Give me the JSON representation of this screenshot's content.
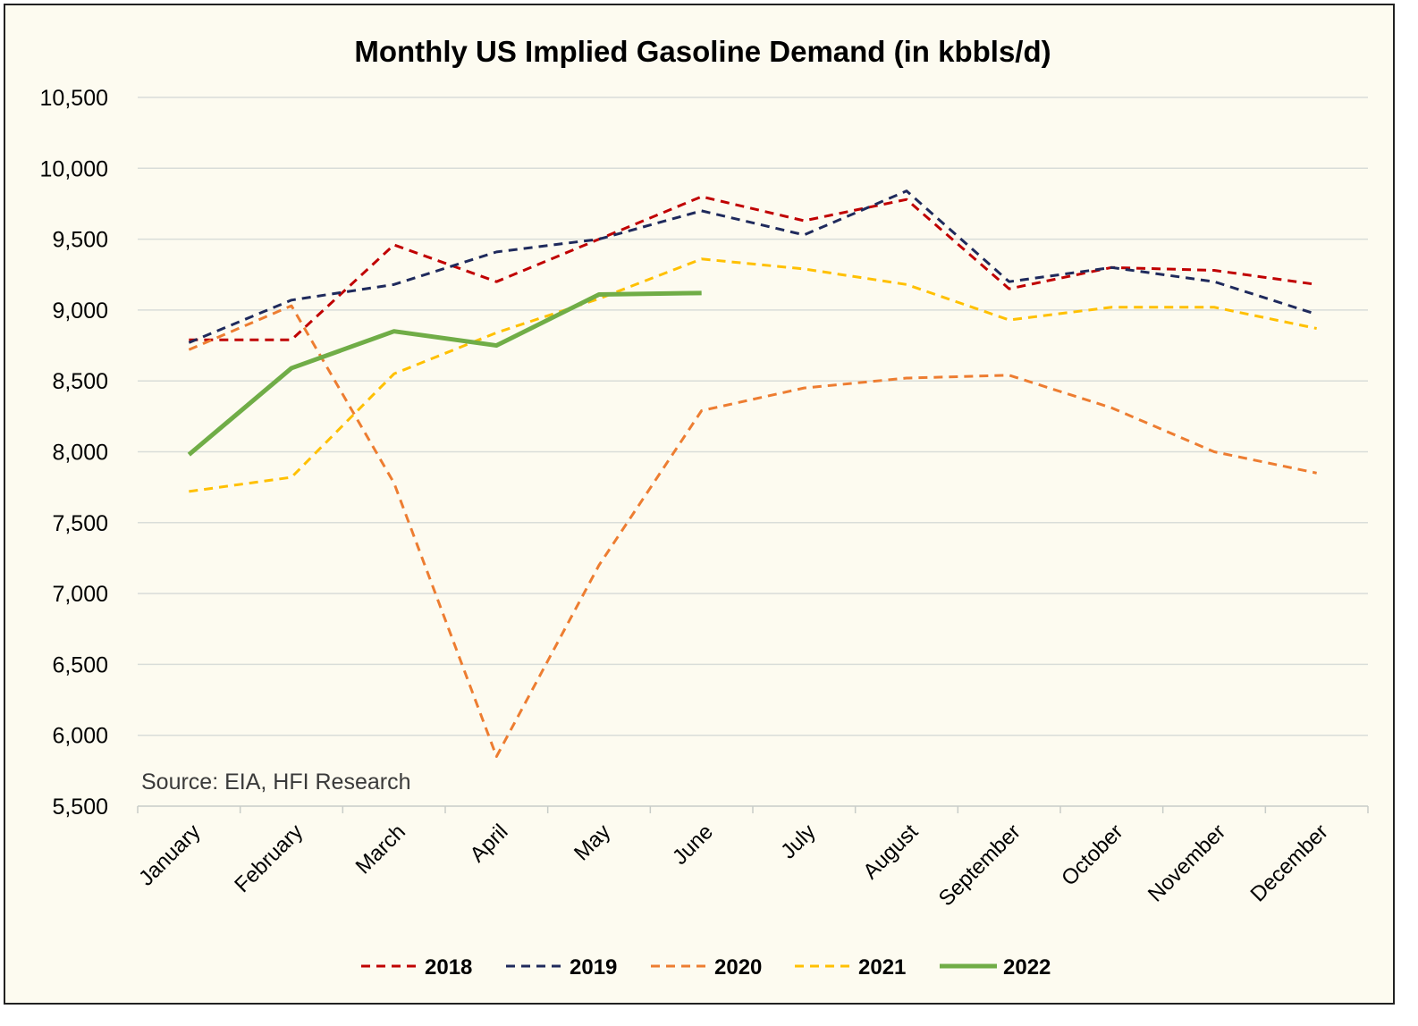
{
  "chart_data": {
    "type": "line",
    "title": "Monthly US Implied Gasoline Demand (in kbbls/d)",
    "source_note": "Source: EIA, HFI Research",
    "xlabel": "",
    "ylabel": "",
    "ylim": [
      5500,
      10500
    ],
    "yticks": [
      5500,
      6000,
      6500,
      7000,
      7500,
      8000,
      8500,
      9000,
      9500,
      10000,
      10500
    ],
    "ytick_labels": [
      "5,500",
      "6,000",
      "6,500",
      "7,000",
      "7,500",
      "8,000",
      "8,500",
      "9,000",
      "9,500",
      "10,000",
      "10,500"
    ],
    "categories": [
      "January",
      "February",
      "March",
      "April",
      "May",
      "June",
      "July",
      "August",
      "September",
      "October",
      "November",
      "December"
    ],
    "grid": true,
    "legend_position": "bottom",
    "series": [
      {
        "name": "2018",
        "color": "#c00000",
        "dashed": true,
        "values": [
          8790,
          8790,
          9460,
          9200,
          9500,
          9800,
          9630,
          9780,
          9150,
          9300,
          9280,
          9180
        ]
      },
      {
        "name": "2019",
        "color": "#1f2a5c",
        "dashed": true,
        "values": [
          8770,
          9070,
          9180,
          9410,
          9500,
          9700,
          9530,
          9840,
          9200,
          9300,
          9200,
          8970
        ]
      },
      {
        "name": "2020",
        "color": "#ed7d31",
        "dashed": true,
        "values": [
          8720,
          9030,
          7780,
          5850,
          7200,
          8290,
          8450,
          8520,
          8540,
          8310,
          8000,
          7850
        ]
      },
      {
        "name": "2021",
        "color": "#ffc000",
        "dashed": true,
        "values": [
          7720,
          7820,
          8550,
          8840,
          9080,
          9360,
          9290,
          9180,
          8930,
          9020,
          9020,
          8870
        ]
      },
      {
        "name": "2022",
        "color": "#70ad47",
        "dashed": false,
        "values": [
          7980,
          8590,
          8850,
          8750,
          9110,
          9120,
          null,
          null,
          null,
          null,
          null,
          null
        ]
      }
    ]
  }
}
